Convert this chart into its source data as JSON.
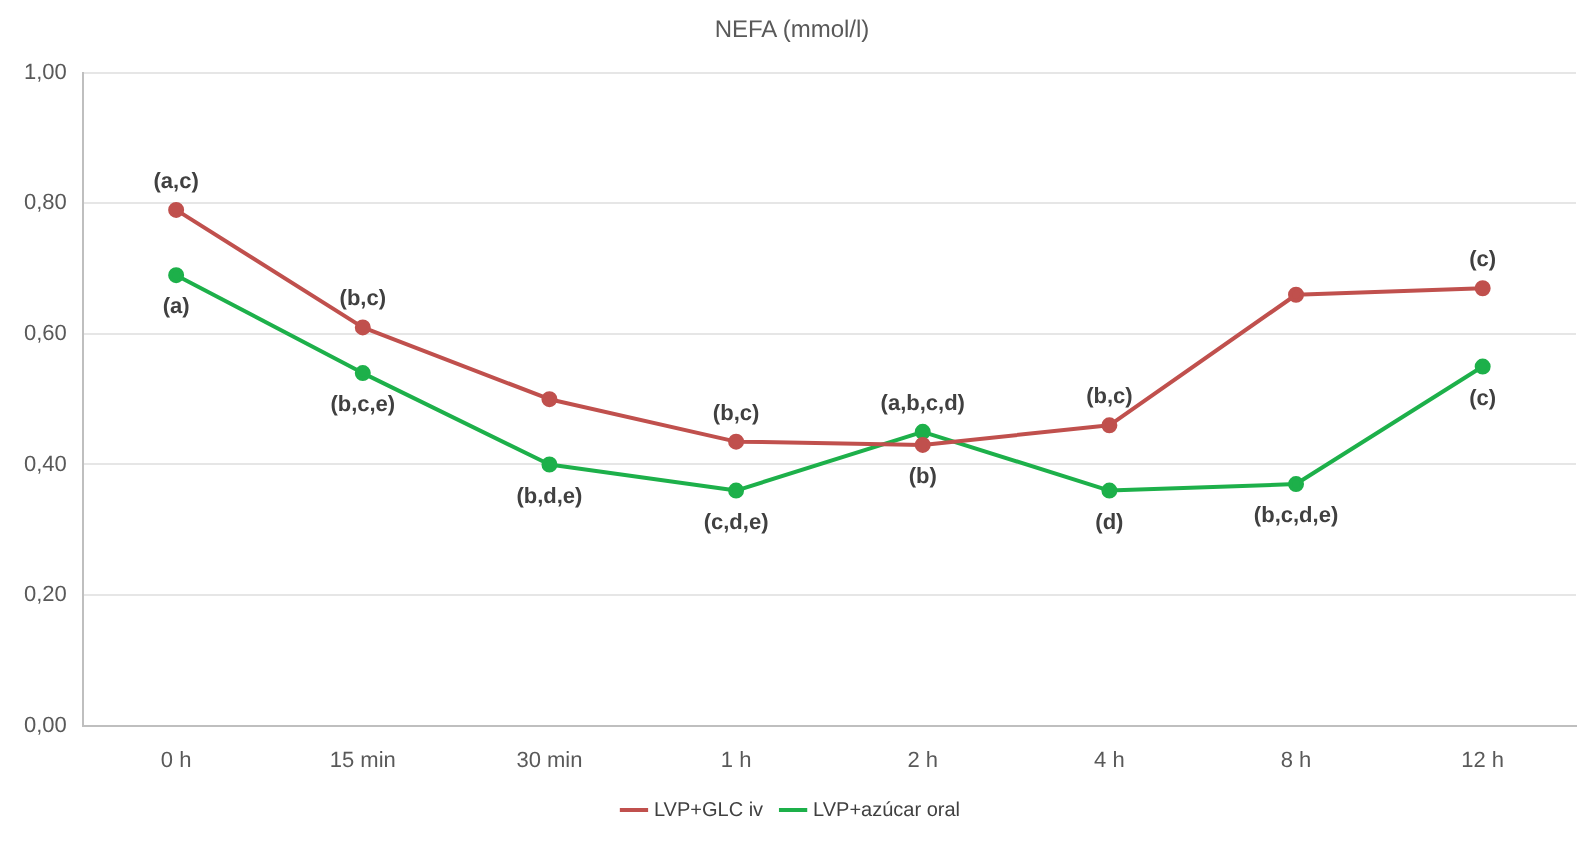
{
  "chart_data": {
    "type": "line",
    "title": "NEFA (mmol/l)",
    "categories": [
      "0 h",
      "15 min",
      "30 min",
      "1 h",
      "2 h",
      "4 h",
      "8 h",
      "12 h"
    ],
    "series": [
      {
        "name": "LVP+GLC iv",
        "color": "#c0504d",
        "values": [
          0.79,
          0.61,
          0.5,
          0.435,
          0.43,
          0.46,
          0.66,
          0.67
        ]
      },
      {
        "name": "LVP+azúcar oral",
        "color": "#1db04a",
        "values": [
          0.69,
          0.54,
          0.4,
          0.36,
          0.45,
          0.36,
          0.37,
          0.55
        ]
      }
    ],
    "ylim": [
      0,
      1
    ],
    "yticks": [
      {
        "value": 0,
        "label": "0,00"
      },
      {
        "value": 0.2,
        "label": "0,20"
      },
      {
        "value": 0.4,
        "label": "0,40"
      },
      {
        "value": 0.6,
        "label": "0,60"
      },
      {
        "value": 0.8,
        "label": "0,80"
      },
      {
        "value": 1,
        "label": "1,00"
      }
    ],
    "grid": "y",
    "legend": "bottom",
    "marker": "circle",
    "line_style": "solid",
    "annotations": [
      {
        "text": "(a,c)",
        "x": "0 h",
        "y": 0.79
      },
      {
        "text": "(a)",
        "x": "0 h",
        "y": 0.69
      },
      {
        "text": "(b,c)",
        "x": "15 min",
        "y": 0.61
      },
      {
        "text": "(b,c,e)",
        "x": "15 min",
        "y": 0.54
      },
      {
        "text": "(b,d,e)",
        "x": "30 min",
        "y": 0.4
      },
      {
        "text": "(b,c)",
        "x": "1 h",
        "y": 0.435
      },
      {
        "text": "(c,d,e)",
        "x": "1 h",
        "y": 0.36
      },
      {
        "text": "(a,b,c,d)",
        "x": "2 h",
        "y": 0.45
      },
      {
        "text": "(b)",
        "x": "2 h",
        "y": 0.43
      },
      {
        "text": "(b,c)",
        "x": "4 h",
        "y": 0.46
      },
      {
        "text": "(d)",
        "x": "4 h",
        "y": 0.36
      },
      {
        "text": "(b,c,d,e)",
        "x": "8 h",
        "y": 0.37
      },
      {
        "text": "(c)",
        "x": "12 h",
        "y": 0.67
      },
      {
        "text": "(c)",
        "x": "12 h",
        "y": 0.55
      }
    ]
  }
}
